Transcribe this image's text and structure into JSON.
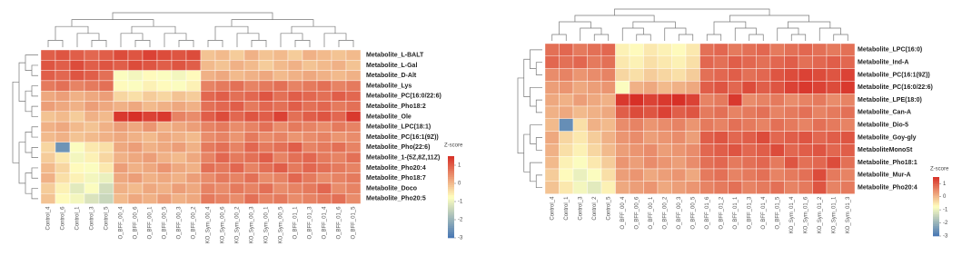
{
  "chart_data": [
    {
      "type": "heatmap",
      "rows": [
        "Metabolite_L-BALT",
        "Metabolite_L-Gal",
        "Metabolite_D-Alt",
        "Metabolite_Lys",
        "Metabolite_PC(16:0/22:6)",
        "Metabolite_Pho18:2",
        "Metabolite_Ole",
        "Metabolite_LPC(18:1)",
        "Metabolite_PC(16:1(9Z))",
        "Metabolite_Pho(22:6)",
        "Metabolite_1-(5Z,8Z,11Z)",
        "Metabolite_Pho20:4",
        "Metabolite_Pho18:7",
        "Metabolite_Doco",
        "Metabolite_Pho20:5"
      ],
      "columns": [
        "Control_4",
        "Control_6",
        "Control_1",
        "Control_3",
        "Control_5",
        "O_BFF_00_4",
        "O_BFF_00_6",
        "O_BFF_00_1",
        "O_BFF_00_5",
        "O_BFF_00_3",
        "O_BFF_00_2",
        "KO_Sym_00_4",
        "KO_Sym_00_6",
        "KO_Sym_00_2",
        "KO_Sym_00_3",
        "KO_Sym_00_1",
        "KO_Sym_00_5",
        "O_BFF_01_1",
        "O_BFF_01_3",
        "O_BFF_01_4",
        "O_BFF_01_6",
        "O_BFF_01_5"
      ],
      "values": [
        [
          1.0,
          1.1,
          1.0,
          0.9,
          1.0,
          1.2,
          1.1,
          1.3,
          1.2,
          1.1,
          1.2,
          -0.1,
          0.0,
          -0.2,
          0.1,
          -0.1,
          0.0,
          -0.2,
          0.1,
          0.0,
          -0.1,
          0.0
        ],
        [
          1.1,
          1.0,
          1.2,
          1.0,
          1.1,
          1.0,
          1.2,
          1.1,
          1.0,
          1.1,
          1.0,
          0.0,
          -0.1,
          0.1,
          0.0,
          -0.2,
          0.0,
          0.1,
          -0.1,
          0.0,
          0.1,
          -0.1
        ],
        [
          1.0,
          0.9,
          1.1,
          1.0,
          0.8,
          -0.8,
          -0.9,
          -0.7,
          -0.8,
          -0.9,
          -0.7,
          0.1,
          0.2,
          0.0,
          0.1,
          0.2,
          0.0,
          0.1,
          0.2,
          0.1,
          0.0,
          0.1
        ],
        [
          0.7,
          0.8,
          0.6,
          0.7,
          0.8,
          -0.7,
          -0.8,
          -0.6,
          -0.7,
          -0.8,
          -0.6,
          0.6,
          0.7,
          0.8,
          0.6,
          0.7,
          0.8,
          0.6,
          0.7,
          0.8,
          0.6,
          0.7
        ],
        [
          0.2,
          0.3,
          0.1,
          0.2,
          0.3,
          -0.3,
          -0.4,
          -0.2,
          -0.3,
          -0.1,
          -0.2,
          0.9,
          1.0,
          0.8,
          0.9,
          1.1,
          0.8,
          1.0,
          0.9,
          0.8,
          1.0,
          0.9
        ],
        [
          0.3,
          0.2,
          0.1,
          0.3,
          0.2,
          0.1,
          0.2,
          0.0,
          0.1,
          0.2,
          0.1,
          0.8,
          0.9,
          1.0,
          0.7,
          0.9,
          0.8,
          1.0,
          0.8,
          0.9,
          0.7,
          0.8
        ],
        [
          -0.1,
          0.0,
          -0.2,
          0.1,
          0.0,
          1.4,
          1.5,
          1.3,
          1.4,
          0.6,
          0.5,
          1.0,
          1.2,
          0.9,
          1.1,
          1.0,
          1.3,
          0.8,
          1.0,
          1.1,
          0.9,
          1.4
        ],
        [
          0.1,
          0.2,
          0.0,
          -0.1,
          0.1,
          0.3,
          0.2,
          0.4,
          0.1,
          0.2,
          0.3,
          0.6,
          0.7,
          0.5,
          0.6,
          0.8,
          0.5,
          0.7,
          0.6,
          0.5,
          0.7,
          0.6
        ],
        [
          0.0,
          0.1,
          -0.1,
          0.0,
          0.1,
          0.2,
          0.1,
          0.0,
          0.2,
          0.1,
          0.0,
          0.5,
          0.6,
          0.4,
          0.7,
          0.5,
          0.6,
          0.4,
          0.5,
          0.6,
          0.4,
          0.5
        ],
        [
          -0.3,
          -2.5,
          -0.8,
          -0.5,
          -0.4,
          0.2,
          0.3,
          0.1,
          0.2,
          0.3,
          0.1,
          0.7,
          0.8,
          0.6,
          0.9,
          0.7,
          0.8,
          1.0,
          0.6,
          0.7,
          0.8,
          0.6
        ],
        [
          -0.2,
          -0.5,
          -0.9,
          -0.6,
          -0.3,
          0.1,
          0.2,
          0.3,
          0.1,
          0.0,
          0.2,
          0.6,
          0.9,
          0.7,
          0.8,
          1.0,
          0.6,
          0.8,
          0.9,
          0.7,
          0.6,
          0.8
        ],
        [
          0.0,
          -0.3,
          -0.7,
          -0.8,
          -0.5,
          0.3,
          0.1,
          0.2,
          0.4,
          0.2,
          0.1,
          0.8,
          0.7,
          0.9,
          0.6,
          0.8,
          1.0,
          0.7,
          0.9,
          0.8,
          0.7,
          0.6
        ],
        [
          0.1,
          -0.4,
          -0.6,
          -0.9,
          -1.0,
          0.2,
          0.3,
          0.1,
          0.2,
          0.1,
          0.3,
          0.5,
          0.7,
          0.6,
          0.8,
          0.5,
          0.6,
          0.9,
          0.7,
          0.5,
          0.6,
          0.7
        ],
        [
          -0.2,
          -0.6,
          -1.1,
          -0.8,
          -1.3,
          0.1,
          0.0,
          0.2,
          0.1,
          0.3,
          0.2,
          0.6,
          0.5,
          0.7,
          0.6,
          0.8,
          0.5,
          0.6,
          0.7,
          0.9,
          0.5,
          0.6
        ],
        [
          -0.1,
          -0.7,
          -0.9,
          -1.2,
          -1.4,
          0.0,
          0.2,
          0.1,
          0.3,
          0.1,
          0.2,
          0.7,
          0.6,
          0.5,
          0.8,
          0.6,
          0.7,
          0.5,
          0.6,
          0.7,
          0.8,
          0.5
        ]
      ],
      "colors": [
        "#4575b4",
        "#ffffbf",
        "#d73027"
      ],
      "zlim": [
        -3,
        1.5
      ],
      "colorbar_title": "Z-score",
      "colorbar_ticks": [
        1,
        0,
        -1,
        -2,
        -3
      ]
    },
    {
      "type": "heatmap",
      "rows": [
        "Metabolite_LPC(16:0)",
        "Metabolite_Ind-A",
        "Metabolite_PC(16:1(9Z))",
        "Metabolite_PC(16:0/22:6)",
        "Metabolite_LPE(18:0)",
        "Metabolite_Can-A",
        "Metabolite_Dio-5",
        "Metabolite_Goy-gly",
        "MetaboliteMonoSt",
        "Metabolite_Pho18:1",
        "Metabolite_Mur-A",
        "Metabolite_Pho20:4"
      ],
      "columns": [
        "Control_4",
        "Control_1",
        "Control_3",
        "Control_2",
        "Control_5",
        "O_BFF_00_4",
        "O_BFF_00_6",
        "O_BFF_00_1",
        "O_BFF_00_2",
        "O_BFF_00_3",
        "O_BFF_00_5",
        "O_BFF_01_6",
        "O_BFF_01_2",
        "O_BFF_01_1",
        "O_BFF_01_3",
        "O_BFF_01_4",
        "O_BFF_01_5",
        "KO_Sym_01_4",
        "KO_Sym_01_6",
        "KO_Sym_01_2",
        "KO_Sym_01_1",
        "KO_Sym_01_3"
      ],
      "values": [
        [
          0.8,
          0.9,
          0.7,
          0.8,
          0.9,
          -0.6,
          -0.7,
          -0.5,
          -0.6,
          -0.7,
          -0.5,
          0.8,
          0.9,
          0.7,
          0.8,
          0.9,
          0.7,
          0.8,
          0.9,
          0.8,
          0.7,
          0.8
        ],
        [
          0.9,
          0.8,
          0.9,
          0.7,
          0.8,
          -0.5,
          -0.6,
          -0.4,
          -0.5,
          -0.6,
          -0.4,
          0.9,
          0.8,
          1.0,
          0.9,
          0.8,
          0.9,
          1.0,
          0.8,
          0.9,
          1.0,
          0.9
        ],
        [
          0.5,
          0.6,
          0.4,
          0.5,
          0.6,
          -0.3,
          -0.4,
          -0.2,
          -0.3,
          -0.4,
          -0.2,
          0.8,
          0.9,
          1.0,
          0.8,
          0.9,
          1.1,
          1.2,
          1.3,
          1.2,
          1.1,
          1.3
        ],
        [
          0.3,
          0.4,
          0.2,
          0.3,
          0.4,
          -0.8,
          0.1,
          0.2,
          0.0,
          0.1,
          0.2,
          1.0,
          1.1,
          0.9,
          1.2,
          1.0,
          1.1,
          1.3,
          1.4,
          1.3,
          1.2,
          1.4
        ],
        [
          0.2,
          0.1,
          0.3,
          0.2,
          0.1,
          1.4,
          1.5,
          1.3,
          1.4,
          1.5,
          1.3,
          0.6,
          0.7,
          1.4,
          0.5,
          0.6,
          0.7,
          0.5,
          0.6,
          0.7,
          0.5,
          0.6
        ],
        [
          0.1,
          0.2,
          0.0,
          0.1,
          0.2,
          1.0,
          1.2,
          1.1,
          1.3,
          1.0,
          1.1,
          0.7,
          0.8,
          0.6,
          0.7,
          0.8,
          0.6,
          0.7,
          0.8,
          0.6,
          0.7,
          0.8
        ],
        [
          0.0,
          -2.6,
          -0.4,
          0.1,
          0.0,
          0.5,
          0.6,
          0.4,
          0.5,
          0.6,
          0.4,
          0.7,
          0.6,
          0.8,
          0.7,
          0.6,
          0.8,
          0.7,
          0.6,
          0.8,
          0.7,
          0.6
        ],
        [
          0.2,
          -0.3,
          -0.5,
          -0.2,
          0.1,
          0.4,
          0.5,
          0.3,
          0.4,
          0.5,
          0.3,
          1.0,
          1.1,
          0.9,
          1.0,
          1.2,
          0.9,
          1.0,
          1.1,
          0.9,
          1.0,
          1.1
        ],
        [
          0.1,
          -0.4,
          -0.6,
          -0.3,
          0.0,
          0.3,
          0.4,
          0.5,
          0.3,
          0.4,
          0.5,
          0.9,
          1.0,
          1.1,
          0.9,
          1.0,
          1.2,
          0.9,
          1.0,
          1.1,
          0.9,
          1.0
        ],
        [
          0.0,
          -0.6,
          -0.8,
          -0.5,
          -0.2,
          0.4,
          0.3,
          0.5,
          0.4,
          0.3,
          0.5,
          0.8,
          0.9,
          0.7,
          0.8,
          0.9,
          0.7,
          1.1,
          0.8,
          0.9,
          1.2,
          0.8
        ],
        [
          -0.2,
          -0.7,
          -1.0,
          -0.8,
          -0.4,
          0.3,
          0.4,
          0.2,
          0.3,
          0.4,
          0.2,
          0.7,
          0.8,
          0.6,
          0.7,
          0.8,
          0.6,
          0.7,
          0.8,
          1.2,
          0.7,
          0.6
        ],
        [
          -0.1,
          -0.5,
          -0.9,
          -1.1,
          -0.6,
          0.2,
          0.3,
          0.4,
          0.2,
          0.3,
          0.4,
          0.6,
          0.7,
          0.8,
          0.6,
          0.7,
          0.8,
          0.6,
          0.7,
          1.1,
          0.6,
          0.7
        ]
      ],
      "colors": [
        "#4575b4",
        "#ffffbf",
        "#d73027"
      ],
      "zlim": [
        -3,
        1.5
      ],
      "colorbar_title": "Z-score",
      "colorbar_ticks": [
        1,
        0,
        -1,
        -2,
        -3
      ]
    }
  ]
}
